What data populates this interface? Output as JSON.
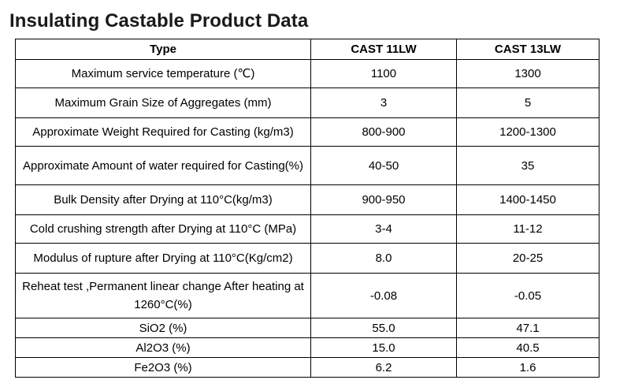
{
  "title": "Insulating Castable Product Data",
  "table": {
    "headers": [
      "Type",
      "CAST 11LW",
      "CAST 13LW"
    ],
    "rows": [
      {
        "label": "Maximum service temperature (℃)",
        "v1": "1100",
        "v2": "1300"
      },
      {
        "label": "Maximum Grain Size of Aggregates (mm)",
        "v1": "3",
        "v2": "5"
      },
      {
        "label": "Approximate Weight Required for Casting (kg/m3)",
        "v1": "800-900",
        "v2": "1200-1300"
      },
      {
        "label": "Approximate Amount of water required for Casting(%)",
        "v1": "40-50",
        "v2": "35"
      },
      {
        "label": "Bulk Density after Drying at 110°C(kg/m3)",
        "v1": "900-950",
        "v2": "1400-1450"
      },
      {
        "label": "Cold crushing strength after Drying at 110°C (MPa)",
        "v1": "3-4",
        "v2": "11-12"
      },
      {
        "label": "Modulus of rupture after Drying at 110°C(Kg/cm2)",
        "v1": "8.0",
        "v2": "20-25"
      },
      {
        "label": "Reheat test ,Permanent  linear change  After heating at 1260°C(%)",
        "v1": "-0.08",
        "v2": "-0.05"
      },
      {
        "label": "SiO2 (%)",
        "v1": "55.0",
        "v2": "47.1"
      },
      {
        "label": "Al2O3 (%)",
        "v1": "15.0",
        "v2": "40.5"
      },
      {
        "label": "Fe2O3 (%)",
        "v1": "6.2",
        "v2": "1.6"
      }
    ]
  }
}
